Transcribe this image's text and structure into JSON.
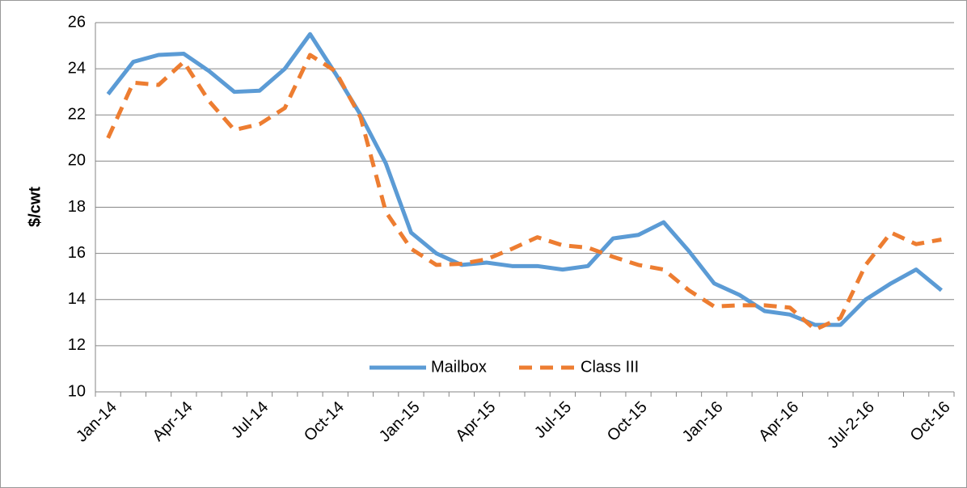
{
  "chart_data": {
    "type": "line",
    "y_label": "$/cwt",
    "categories": [
      "Jan-14",
      null,
      null,
      "Apr-14",
      null,
      null,
      "Jul-14",
      null,
      null,
      "Oct-14",
      null,
      null,
      "Jan-15",
      null,
      null,
      "Apr-15",
      null,
      null,
      "Jul-15",
      null,
      null,
      "Oct-15",
      null,
      null,
      "Jan-16",
      null,
      null,
      "Apr-16",
      null,
      null,
      "Jul-2-16",
      null,
      null,
      "Oct-16"
    ],
    "series": [
      {
        "name": "Mailbox",
        "color": "#5b9bd5",
        "dash": false,
        "values": [
          22.9,
          24.3,
          24.6,
          24.65,
          23.9,
          23.0,
          23.05,
          24.0,
          25.5,
          23.8,
          22.0,
          19.9,
          16.9,
          16.0,
          15.5,
          15.6,
          15.45,
          15.45,
          15.3,
          15.45,
          16.65,
          16.8,
          17.35,
          16.1,
          14.7,
          14.2,
          13.5,
          13.35,
          12.9,
          12.9,
          14.0,
          14.7,
          15.3,
          14.4
        ]
      },
      {
        "name": "Class III",
        "color": "#ed7d31",
        "dash": true,
        "values": [
          21.0,
          23.4,
          23.3,
          24.3,
          22.6,
          21.35,
          21.6,
          22.3,
          24.6,
          23.9,
          21.9,
          17.8,
          16.2,
          15.5,
          15.55,
          15.75,
          16.2,
          16.7,
          16.35,
          16.25,
          15.85,
          15.5,
          15.3,
          14.4,
          13.7,
          13.75,
          13.75,
          13.65,
          12.7,
          13.2,
          15.5,
          16.9,
          16.4,
          16.6
        ]
      }
    ],
    "ylim": [
      10,
      26
    ],
    "yticks": [
      10,
      12,
      14,
      16,
      18,
      20,
      22,
      24,
      26
    ],
    "grid": true,
    "legend": "bottom"
  }
}
